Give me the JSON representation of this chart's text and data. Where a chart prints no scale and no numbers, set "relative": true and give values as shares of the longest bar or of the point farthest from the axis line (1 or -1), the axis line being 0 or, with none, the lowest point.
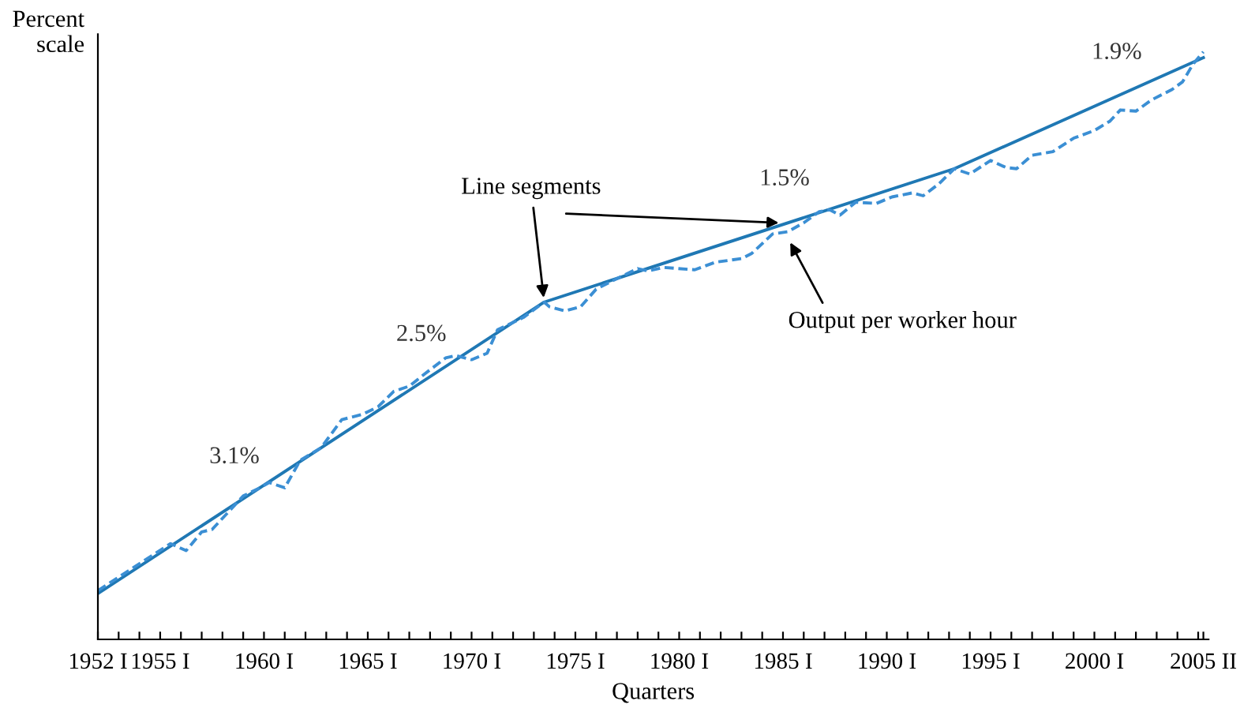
{
  "chart_data": {
    "type": "line",
    "relative": true,
    "xlabel": "Quarters",
    "ylabel": "Percent\nscale",
    "xlim": [
      1952,
      2005.5
    ],
    "xticks": [
      {
        "value": 1952,
        "label": "1952 I"
      },
      {
        "value": 1953,
        "label": null
      },
      {
        "value": 1954,
        "label": null
      },
      {
        "value": 1955,
        "label": "1955 I"
      },
      {
        "value": 1956,
        "label": null
      },
      {
        "value": 1957,
        "label": null
      },
      {
        "value": 1958,
        "label": null
      },
      {
        "value": 1959,
        "label": null
      },
      {
        "value": 1960,
        "label": "1960 I"
      },
      {
        "value": 1961,
        "label": null
      },
      {
        "value": 1962,
        "label": null
      },
      {
        "value": 1963,
        "label": null
      },
      {
        "value": 1964,
        "label": null
      },
      {
        "value": 1965,
        "label": "1965 I"
      },
      {
        "value": 1966,
        "label": null
      },
      {
        "value": 1967,
        "label": null
      },
      {
        "value": 1968,
        "label": null
      },
      {
        "value": 1969,
        "label": null
      },
      {
        "value": 1970,
        "label": "1970 I"
      },
      {
        "value": 1971,
        "label": null
      },
      {
        "value": 1972,
        "label": null
      },
      {
        "value": 1973,
        "label": null
      },
      {
        "value": 1974,
        "label": null
      },
      {
        "value": 1975,
        "label": "1975 I"
      },
      {
        "value": 1976,
        "label": null
      },
      {
        "value": 1977,
        "label": null
      },
      {
        "value": 1978,
        "label": null
      },
      {
        "value": 1979,
        "label": null
      },
      {
        "value": 1980,
        "label": "1980 I"
      },
      {
        "value": 1981,
        "label": null
      },
      {
        "value": 1982,
        "label": null
      },
      {
        "value": 1983,
        "label": null
      },
      {
        "value": 1984,
        "label": null
      },
      {
        "value": 1985,
        "label": "1985 I"
      },
      {
        "value": 1986,
        "label": null
      },
      {
        "value": 1987,
        "label": null
      },
      {
        "value": 1988,
        "label": null
      },
      {
        "value": 1989,
        "label": null
      },
      {
        "value": 1990,
        "label": "1990 I"
      },
      {
        "value": 1991,
        "label": null
      },
      {
        "value": 1992,
        "label": null
      },
      {
        "value": 1993,
        "label": null
      },
      {
        "value": 1994,
        "label": null
      },
      {
        "value": 1995,
        "label": "1995 I"
      },
      {
        "value": 1996,
        "label": null
      },
      {
        "value": 1997,
        "label": null
      },
      {
        "value": 1998,
        "label": null
      },
      {
        "value": 1999,
        "label": null
      },
      {
        "value": 2000,
        "label": "2000 I"
      },
      {
        "value": 2001,
        "label": null
      },
      {
        "value": 2002,
        "label": null
      },
      {
        "value": 2003,
        "label": null
      },
      {
        "value": 2004,
        "label": null
      },
      {
        "value": 2005,
        "label": null
      },
      {
        "value": 2005.25,
        "label": "2005 II"
      }
    ],
    "grid": false,
    "legend": false,
    "marker": "none",
    "series": [
      {
        "color": "#1f78b4",
        "line_style": "solid",
        "x": [
          1952.0,
          1973.5,
          1993.25,
          2005.25
        ],
        "values": [
          0.078,
          0.574,
          0.801,
          0.99
        ]
      },
      {
        "color": "#3b8fd4",
        "line_style": "dashed",
        "x": [
          1952.0,
          1955.5,
          1956.25,
          1957.0,
          1957.5,
          1959.0,
          1959.75,
          1960.25,
          1961.0,
          1961.75,
          1962.75,
          1963.75,
          1964.75,
          1965.5,
          1966.25,
          1967.0,
          1967.75,
          1968.75,
          1969.25,
          1970.0,
          1970.75,
          1971.25,
          1972.5,
          1973.5,
          1973.75,
          1974.5,
          1975.25,
          1976.0,
          1977.0,
          1978.0,
          1978.5,
          1979.25,
          1980.75,
          1981.75,
          1983.0,
          1983.5,
          1984.5,
          1985.25,
          1986.0,
          1986.75,
          1987.25,
          1987.75,
          1988.5,
          1989.5,
          1990.25,
          1991.25,
          1991.75,
          1992.5,
          1993.25,
          1994.0,
          1995.0,
          1995.75,
          1996.25,
          1997.0,
          1998.0,
          1999.0,
          2000.0,
          2000.75,
          2001.25,
          2002.0,
          2002.75,
          2003.75,
          2004.25,
          2004.75,
          2005.25
        ],
        "values": [
          0.083,
          0.163,
          0.151,
          0.183,
          0.187,
          0.244,
          0.257,
          0.267,
          0.258,
          0.305,
          0.326,
          0.374,
          0.383,
          0.396,
          0.422,
          0.431,
          0.452,
          0.479,
          0.483,
          0.476,
          0.487,
          0.527,
          0.548,
          0.574,
          0.566,
          0.559,
          0.566,
          0.596,
          0.614,
          0.631,
          0.627,
          0.633,
          0.629,
          0.642,
          0.648,
          0.657,
          0.69,
          0.694,
          0.709,
          0.728,
          0.731,
          0.722,
          0.744,
          0.742,
          0.753,
          0.76,
          0.755,
          0.775,
          0.801,
          0.792,
          0.815,
          0.803,
          0.801,
          0.824,
          0.83,
          0.853,
          0.866,
          0.882,
          0.901,
          0.899,
          0.918,
          0.936,
          0.949,
          0.979,
          1.0
        ]
      }
    ],
    "annotations": [
      {
        "text": "3.1%",
        "x": 1959.0,
        "y": 0.239
      },
      {
        "text": "2.5%",
        "x": 1968.0,
        "y": 0.447
      },
      {
        "text": "1.5%",
        "x": 1985.5,
        "y": 0.712
      },
      {
        "text": "1.9%",
        "x": 2001.5,
        "y": 0.927
      },
      {
        "text": "Line segments",
        "x": 1973.5,
        "y": 0.574
      },
      {
        "text": "Output per worker hour",
        "x": 1985.25,
        "y": 0.694
      }
    ]
  }
}
